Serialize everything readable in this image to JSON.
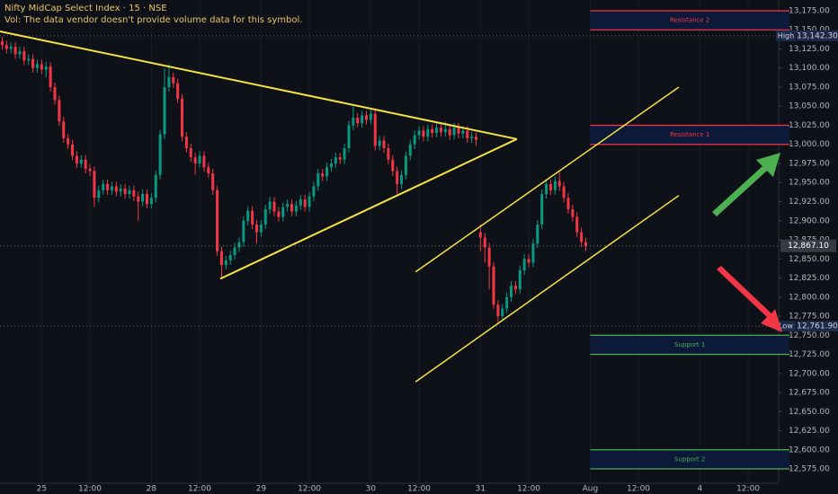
{
  "chart_data": {
    "type": "candlestick",
    "title": "Nifty MidCap Select Index · 15 · NSE",
    "subtitle": "Vol: The data vendor doesn't provide volume data for this symbol.",
    "up_color": "#089981",
    "down_color": "#f23645",
    "ohlc": [
      [
        13135,
        13141,
        13124,
        13130
      ],
      [
        13130,
        13136,
        13119,
        13125
      ],
      [
        13125,
        13134,
        13119,
        13128
      ],
      [
        13128,
        13134,
        13112,
        13118
      ],
      [
        13118,
        13128,
        13112,
        13122
      ],
      [
        13122,
        13128,
        13104,
        13110
      ],
      [
        13110,
        13118,
        13104,
        13112
      ],
      [
        13112,
        13118,
        13094,
        13100
      ],
      [
        13100,
        13111,
        13094,
        13105
      ],
      [
        13105,
        13111,
        13092,
        13098
      ],
      [
        13098,
        13108,
        13088,
        13102
      ],
      [
        13102,
        13108,
        13069,
        13075
      ],
      [
        13075,
        13081,
        13052,
        13058
      ],
      [
        13058,
        13064,
        13024,
        13030
      ],
      [
        13030,
        13036,
        13002,
        13008
      ],
      [
        13008,
        13014,
        12994,
        13000
      ],
      [
        13000,
        13006,
        12979,
        12985
      ],
      [
        12985,
        12991,
        12969,
        12975
      ],
      [
        12975,
        12986,
        12969,
        12980
      ],
      [
        12980,
        12986,
        12962,
        12968
      ],
      [
        12968,
        12974,
        12959,
        12965
      ],
      [
        12965,
        12971,
        12918,
        12930
      ],
      [
        12930,
        12946,
        12924,
        12940
      ],
      [
        12940,
        12954,
        12934,
        12948
      ],
      [
        12948,
        12954,
        12934,
        12940
      ],
      [
        12940,
        12951,
        12934,
        12945
      ],
      [
        12945,
        12951,
        12932,
        12938
      ],
      [
        12938,
        12948,
        12932,
        12942
      ],
      [
        12942,
        12948,
        12929,
        12935
      ],
      [
        12935,
        12946,
        12929,
        12940
      ],
      [
        12940,
        12946,
        12926,
        12932
      ],
      [
        12932,
        12938,
        12900,
        12925
      ],
      [
        12925,
        12941,
        12919,
        12935
      ],
      [
        12935,
        12941,
        12916,
        12922
      ],
      [
        12922,
        12936,
        12916,
        12930
      ],
      [
        12930,
        12966,
        12924,
        12960
      ],
      [
        12960,
        13019,
        12954,
        13013
      ],
      [
        13013,
        13100,
        13007,
        13075
      ],
      [
        13075,
        13105,
        13069,
        13088
      ],
      [
        13088,
        13094,
        13074,
        13080
      ],
      [
        13080,
        13086,
        13054,
        13060
      ],
      [
        13060,
        13066,
        13004,
        13010
      ],
      [
        13010,
        13016,
        12989,
        12995
      ],
      [
        12995,
        13001,
        12977,
        12983
      ],
      [
        12983,
        12989,
        12960,
        12975
      ],
      [
        12975,
        12991,
        12969,
        12985
      ],
      [
        12985,
        12991,
        12964,
        12970
      ],
      [
        12970,
        12976,
        12956,
        12962
      ],
      [
        12962,
        12968,
        12934,
        12940
      ],
      [
        12940,
        12946,
        12854,
        12860
      ],
      [
        12860,
        12866,
        12826,
        12842
      ],
      [
        12842,
        12854,
        12836,
        12848
      ],
      [
        12848,
        12861,
        12842,
        12855
      ],
      [
        12855,
        12871,
        12849,
        12865
      ],
      [
        12865,
        12878,
        12859,
        12872
      ],
      [
        12872,
        12906,
        12866,
        12900
      ],
      [
        12900,
        12919,
        12894,
        12913
      ],
      [
        12913,
        12919,
        12889,
        12895
      ],
      [
        12895,
        12901,
        12870,
        12885
      ],
      [
        12885,
        12901,
        12879,
        12895
      ],
      [
        12895,
        12921,
        12889,
        12915
      ],
      [
        12915,
        12931,
        12909,
        12925
      ],
      [
        12925,
        12931,
        12906,
        12912
      ],
      [
        12912,
        12918,
        12899,
        12905
      ],
      [
        12905,
        12924,
        12899,
        12918
      ],
      [
        12918,
        12928,
        12912,
        12922
      ],
      [
        12922,
        12928,
        12906,
        12912
      ],
      [
        12912,
        12926,
        12906,
        12920
      ],
      [
        12920,
        12934,
        12914,
        12928
      ],
      [
        12928,
        12934,
        12912,
        12918
      ],
      [
        12918,
        12938,
        12912,
        12932
      ],
      [
        12932,
        12951,
        12926,
        12945
      ],
      [
        12945,
        12968,
        12939,
        12962
      ],
      [
        12962,
        12968,
        12952,
        12958
      ],
      [
        12958,
        12976,
        12952,
        12970
      ],
      [
        12970,
        12981,
        12964,
        12975
      ],
      [
        12975,
        12989,
        12969,
        12983
      ],
      [
        12983,
        12989,
        12974,
        12980
      ],
      [
        12980,
        13001,
        12974,
        12995
      ],
      [
        12995,
        13031,
        12989,
        13025
      ],
      [
        13025,
        13050,
        13019,
        13035
      ],
      [
        13035,
        13041,
        13022,
        13028
      ],
      [
        13028,
        13044,
        13022,
        13038
      ],
      [
        13038,
        13044,
        13026,
        13032
      ],
      [
        13032,
        13046,
        13026,
        13040
      ],
      [
        13040,
        13046,
        12992,
        12998
      ],
      [
        12998,
        13011,
        12992,
        13005
      ],
      [
        13005,
        13011,
        12989,
        12995
      ],
      [
        12995,
        13001,
        12974,
        12980
      ],
      [
        12980,
        12986,
        12959,
        12965
      ],
      [
        12965,
        12971,
        12935,
        12948
      ],
      [
        12948,
        12966,
        12942,
        12960
      ],
      [
        12960,
        12991,
        12954,
        12985
      ],
      [
        12985,
        13006,
        12979,
        13000
      ],
      [
        13000,
        13018,
        12994,
        13012
      ],
      [
        13012,
        13024,
        13006,
        13018
      ],
      [
        13018,
        13024,
        13004,
        13010
      ],
      [
        13010,
        13026,
        13004,
        13020
      ],
      [
        13020,
        13026,
        13009,
        13015
      ],
      [
        13015,
        13028,
        13009,
        13022
      ],
      [
        13022,
        13028,
        13010,
        13016
      ],
      [
        13016,
        13030,
        13010,
        13020
      ],
      [
        13020,
        13026,
        13006,
        13012
      ],
      [
        13012,
        13028,
        13006,
        13022
      ],
      [
        13022,
        13028,
        13008,
        13014
      ],
      [
        13014,
        13024,
        13008,
        13018
      ],
      [
        13018,
        13024,
        13002,
        13008
      ],
      [
        13008,
        13016,
        13002,
        13010
      ],
      [
        13010,
        13016,
        12998,
        13006
      ],
      [
        12885,
        12895,
        12860,
        12878
      ],
      [
        12878,
        12884,
        12845,
        12865
      ],
      [
        12865,
        12871,
        12810,
        12840
      ],
      [
        12840,
        12846,
        12784,
        12790
      ],
      [
        12790,
        12796,
        12765,
        12775
      ],
      [
        12775,
        12791,
        12769,
        12785
      ],
      [
        12785,
        12806,
        12779,
        12800
      ],
      [
        12800,
        12821,
        12794,
        12815
      ],
      [
        12815,
        12821,
        12804,
        12810
      ],
      [
        12810,
        12841,
        12804,
        12835
      ],
      [
        12835,
        12856,
        12829,
        12850
      ],
      [
        12850,
        12856,
        12839,
        12845
      ],
      [
        12845,
        12876,
        12839,
        12870
      ],
      [
        12870,
        12901,
        12864,
        12895
      ],
      [
        12895,
        12941,
        12889,
        12935
      ],
      [
        12935,
        12954,
        12929,
        12948
      ],
      [
        12948,
        12954,
        12934,
        12940
      ],
      [
        12940,
        12958,
        12934,
        12952
      ],
      [
        12952,
        12965,
        12939,
        12945
      ],
      [
        12945,
        12951,
        12924,
        12930
      ],
      [
        12930,
        12936,
        12909,
        12915
      ],
      [
        12915,
        12921,
        12899,
        12905
      ],
      [
        12905,
        12911,
        12879,
        12885
      ],
      [
        12885,
        12891,
        12866,
        12872
      ],
      [
        12872,
        12878,
        12860,
        12867
      ]
    ],
    "xlim": [
      -0.5,
      176.75
    ],
    "ylim": [
      12556.2,
      13189.1
    ],
    "xticks": [
      {
        "value": 9,
        "label": "25"
      },
      {
        "value": 20,
        "label": "12:00"
      },
      {
        "value": 34,
        "label": "28"
      },
      {
        "value": 45,
        "label": "12:00"
      },
      {
        "value": 59,
        "label": "29"
      },
      {
        "value": 70,
        "label": "12:00"
      },
      {
        "value": 84,
        "label": "30"
      },
      {
        "value": 95,
        "label": "12:00"
      },
      {
        "value": 109,
        "label": "31"
      },
      {
        "value": 120,
        "label": "12:00"
      },
      {
        "value": 134,
        "label": "Aug"
      },
      {
        "value": 145,
        "label": "12:00"
      },
      {
        "value": 159,
        "label": "4"
      },
      {
        "value": 170,
        "label": "12:00"
      }
    ],
    "yticks": [
      {
        "value": 13175,
        "label": "13,175.00"
      },
      {
        "value": 13150,
        "label": "13,150.00"
      },
      {
        "value": 13125,
        "label": "13,125.00"
      },
      {
        "value": 13100,
        "label": "13,100.00"
      },
      {
        "value": 13075,
        "label": "13,075.00"
      },
      {
        "value": 13050,
        "label": "13,050.00"
      },
      {
        "value": 13025,
        "label": "13,025.00"
      },
      {
        "value": 13000,
        "label": "13,000.00"
      },
      {
        "value": 12975,
        "label": "12,975.00"
      },
      {
        "value": 12950,
        "label": "12,950.00"
      },
      {
        "value": 12925,
        "label": "12,925.00"
      },
      {
        "value": 12900,
        "label": "12,900.00"
      },
      {
        "value": 12875,
        "label": "12,875.00"
      },
      {
        "value": 12850,
        "label": "12,850.00"
      },
      {
        "value": 12825,
        "label": "12,825.00"
      },
      {
        "value": 12800,
        "label": "12,800.00"
      },
      {
        "value": 12775,
        "label": "12,775.00"
      },
      {
        "value": 12750,
        "label": "12,750.00"
      },
      {
        "value": 12725,
        "label": "12,725.00"
      },
      {
        "value": 12700,
        "label": "12,700.00"
      },
      {
        "value": 12675,
        "label": "12,675.00"
      },
      {
        "value": 12650,
        "label": "12,650.00"
      },
      {
        "value": 12625,
        "label": "12,625.00"
      },
      {
        "value": 12600,
        "label": "12,600.00"
      },
      {
        "value": 12575,
        "label": "12,575.00"
      }
    ],
    "zones": [
      {
        "label": "Resistance 2",
        "from": 134,
        "top": 13175,
        "bottom": 13150,
        "color": "#f23645"
      },
      {
        "label": "Resistance 1",
        "from": 134,
        "top": 13025,
        "bottom": 13000,
        "color": "#f23645"
      },
      {
        "label": "Support 1",
        "from": 134,
        "top": 12750,
        "bottom": 12725,
        "color": "#4caf50"
      },
      {
        "label": "Support 2",
        "from": 134,
        "top": 12600,
        "bottom": 12575,
        "color": "#4caf50"
      }
    ],
    "trend_lines": [
      {
        "x": [
          -0.5,
          117.3
        ],
        "y": [
          13148,
          13007
        ],
        "color": "#f5e342",
        "width": 2
      },
      {
        "x": [
          49.7,
          117.3
        ],
        "y": [
          12824,
          13007
        ],
        "color": "#f5e342",
        "width": 2
      },
      {
        "x": [
          94.2,
          154.2
        ],
        "y": [
          12833,
          13075
        ],
        "color": "#f5e342",
        "width": 1.5
      },
      {
        "x": [
          94.2,
          154.2
        ],
        "y": [
          12689,
          12933
        ],
        "color": "#f5e342",
        "width": 1.5
      }
    ],
    "markers": [
      {
        "name": "High",
        "value": 13142.3,
        "label": "13,142.30"
      },
      {
        "name": "Low",
        "value": 12761.9,
        "label": "12,761.90"
      }
    ],
    "last_price": {
      "value": 12867.1,
      "label": "12,867.10"
    }
  }
}
